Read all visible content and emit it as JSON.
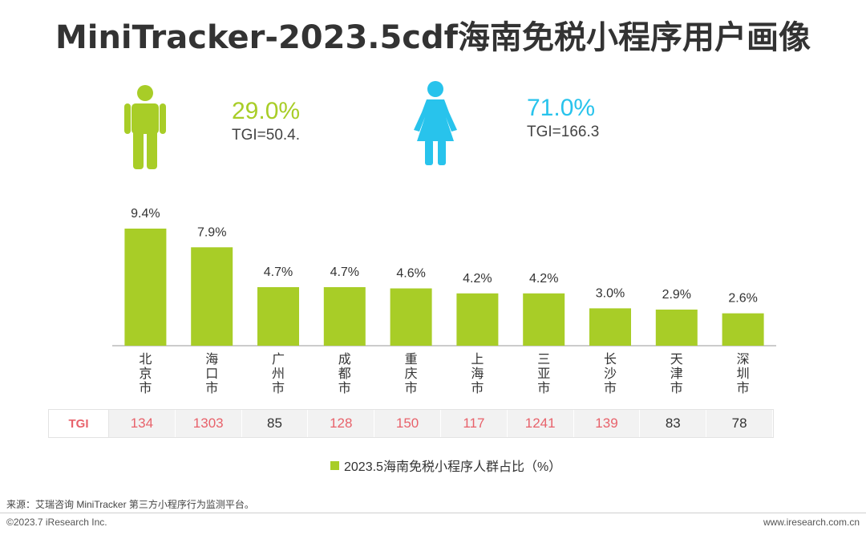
{
  "title": "MiniTracker-2023.5cdf海南免税小程序用户画像",
  "male": {
    "pct": "29.0%",
    "tgi": "TGI=50.4."
  },
  "female": {
    "pct": "71.0%",
    "tgi": "TGI=166.3"
  },
  "colors": {
    "bar": "#a8cd27",
    "male": "#a8cd27",
    "female": "#28c3ec",
    "tgi_highlight": "#e8626b",
    "tgi_normal": "#333333"
  },
  "tgi": {
    "label": "TGI",
    "values": [
      "134",
      "1303",
      "85",
      "128",
      "150",
      "117",
      "1241",
      "139",
      "83",
      "78"
    ],
    "highlight": [
      true,
      true,
      false,
      true,
      true,
      true,
      true,
      true,
      false,
      false
    ]
  },
  "legend": {
    "label": "2023.5海南免税小程序人群占比（%）"
  },
  "source": "来源：艾瑞咨询 MiniTracker 第三方小程序行为监测平台。",
  "copyright": "©2023.7 iResearch Inc.",
  "website": "www.iresearch.com.cn",
  "chart_data": {
    "type": "bar",
    "categories": [
      "北京市",
      "海口市",
      "广州市",
      "成都市",
      "重庆市",
      "上海市",
      "三亚市",
      "长沙市",
      "天津市",
      "深圳市"
    ],
    "values": [
      9.4,
      7.9,
      4.7,
      4.7,
      4.6,
      4.2,
      4.2,
      3.0,
      2.9,
      2.6
    ],
    "data_labels": [
      "9.4%",
      "7.9%",
      "4.7%",
      "4.7%",
      "4.6%",
      "4.2%",
      "4.2%",
      "3.0%",
      "2.9%",
      "2.6%"
    ],
    "series": [
      {
        "name": "2023.5海南免税小程序人群占比（%）",
        "values": [
          9.4,
          7.9,
          4.7,
          4.7,
          4.6,
          4.2,
          4.2,
          3.0,
          2.9,
          2.6
        ]
      }
    ],
    "ylim": [
      0,
      10
    ],
    "grid": false,
    "legend_position": "bottom"
  }
}
